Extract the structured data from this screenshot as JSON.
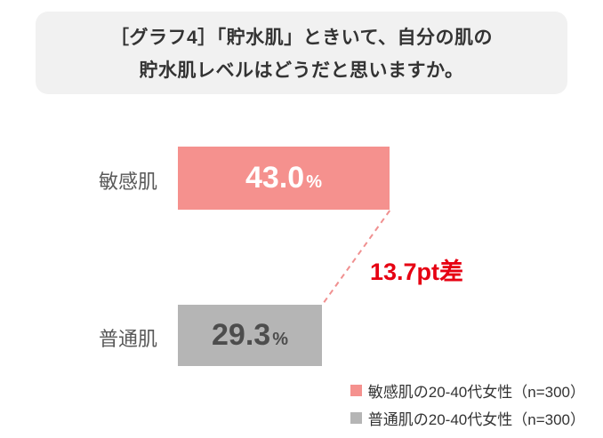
{
  "title": {
    "line1": "［グラフ4］「貯水肌」ときいて、自分の肌の",
    "line2": "貯水肌レベルはどうだと思いますか。"
  },
  "chart_data": {
    "type": "bar",
    "orientation": "horizontal",
    "title": "［グラフ4］「貯水肌」ときいて、自分の肌の貯水肌レベルはどうだと思いますか。",
    "categories": [
      "敏感肌",
      "普通肌"
    ],
    "values": [
      43.0,
      29.3
    ],
    "value_labels": [
      "43.0",
      "29.3"
    ],
    "unit": "%",
    "annotation": "13.7pt差",
    "gap_pt": 13.7,
    "xlim": [
      0,
      80
    ],
    "grid": false,
    "legend_position": "bottom-right",
    "bar_colors": [
      "#f5918e",
      "#b5b5b5"
    ],
    "value_text_colors": [
      "#ffffff",
      "#4d4d4d"
    ],
    "colors": {
      "accent_red": "#e60012",
      "dash_line": "#f09090",
      "title_box_bg": "#f1f1f1"
    }
  },
  "legend": {
    "items": [
      {
        "label": "敏感肌の20-40代女性（n=300）",
        "color": "#f5918e"
      },
      {
        "label": "普通肌の20-40代女性（n=300）",
        "color": "#b5b5b5"
      }
    ]
  }
}
